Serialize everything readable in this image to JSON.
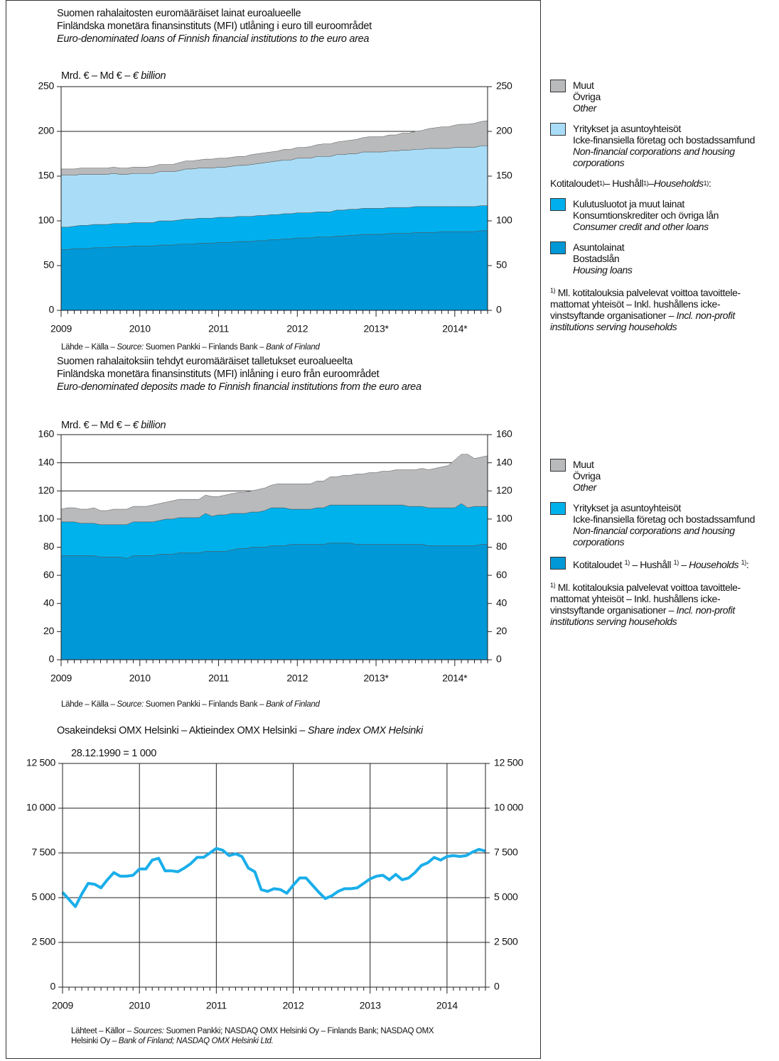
{
  "chart_data": [
    {
      "type": "area",
      "stacked": true,
      "title": [
        "Suomen rahalaitosten euromääräiset lainat euroalueelle",
        "Finländska monetära finansinstituts (MFI) utlåning i euro till euroområdet",
        {
          "italic": "Euro-denominated loans of Finnish financial institutions to the euro area"
        }
      ],
      "unit_label": [
        "Mrd. € – Md € – ",
        {
          "italic": "€ billion"
        }
      ],
      "source": [
        "Lähde – Källa – ",
        {
          "italic": "Source:"
        },
        " Suomen Pankki – Finlands Bank – ",
        {
          "italic": "Bank of Finland"
        }
      ],
      "categories": [
        "2009",
        null,
        null,
        null,
        null,
        null,
        null,
        null,
        null,
        null,
        null,
        null,
        "2010",
        null,
        null,
        null,
        null,
        null,
        null,
        null,
        null,
        null,
        null,
        null,
        "2011",
        null,
        null,
        null,
        null,
        null,
        null,
        null,
        null,
        null,
        null,
        null,
        "2012",
        null,
        null,
        null,
        null,
        null,
        null,
        null,
        null,
        null,
        null,
        null,
        "2013*",
        null,
        null,
        null,
        null,
        null,
        null,
        null,
        null,
        null,
        null,
        null,
        "2014*",
        null,
        null,
        null,
        null,
        null
      ],
      "ylim": [
        0,
        250
      ],
      "yticks": [
        0,
        50,
        100,
        150,
        200,
        250
      ],
      "grid": true,
      "legend_heading": [
        "Kotitaloudet ",
        {
          "sup": "1)"
        },
        " – Hushåll ",
        {
          "sup": "1)"
        },
        " – ",
        {
          "italic": "Households "
        },
        {
          "sup": "1)"
        },
        ":"
      ],
      "footnote": [
        [
          {
            "sup": "1)"
          },
          " Ml. kotitalouksia palvelevat voittoa tavoittele-"
        ],
        "mattomat yhteisöt – Inkl. hushållens icke-",
        [
          "vinstsyftande organisationer – ",
          {
            "italic": "Incl. non-profit"
          }
        ],
        {
          "italic": "institutions serving households"
        }
      ],
      "series": [
        {
          "name": [
            "Muut",
            "Övriga",
            {
              "italic": "Other"
            }
          ],
          "color": "#b9babc",
          "values": [
            7,
            7,
            7,
            7,
            7,
            7,
            7,
            7,
            7,
            7,
            7,
            7,
            7,
            7,
            8,
            8,
            8,
            8,
            9,
            9,
            9,
            9,
            10,
            10,
            10,
            10,
            10,
            10,
            10,
            11,
            11,
            11,
            11,
            11,
            12,
            12,
            12,
            12,
            13,
            13,
            14,
            14,
            14,
            15,
            15,
            16,
            16,
            17,
            17,
            17,
            18,
            18,
            19,
            19,
            20,
            21,
            22,
            23,
            24,
            24,
            25,
            26,
            26,
            27,
            27,
            28
          ]
        },
        {
          "name": [
            "Yritykset ja asuntoyhteisöt",
            "Icke-finansiella företag och bostadssamfund",
            {
              "italic": "Non-financial corporations and housing"
            },
            {
              "italic": "corporations"
            }
          ],
          "color": "#a9ddf7",
          "values": [
            58,
            58,
            57,
            57,
            57,
            56,
            56,
            56,
            56,
            55,
            55,
            55,
            55,
            55,
            55,
            55,
            55,
            55,
            55,
            56,
            56,
            56,
            56,
            56,
            56,
            56,
            57,
            57,
            57,
            58,
            58,
            59,
            59,
            60,
            60,
            60,
            61,
            61,
            61,
            62,
            62,
            62,
            62,
            62,
            62,
            62,
            63,
            63,
            63,
            63,
            63,
            63,
            64,
            64,
            64,
            64,
            65,
            65,
            65,
            65,
            66,
            66,
            66,
            66,
            67,
            67
          ]
        },
        {
          "name": [
            "Kulutusluotot ja muut lainat",
            "Konsumtionskrediter och övriga lån",
            {
              "italic": "Consumer credit and other loans"
            }
          ],
          "color": "#00b0ee",
          "values": [
            25,
            25,
            25,
            26,
            26,
            26,
            26,
            26,
            26,
            26,
            26,
            26,
            26,
            26,
            26,
            27,
            27,
            27,
            27,
            28,
            28,
            28,
            28,
            28,
            28,
            28,
            28,
            28,
            28,
            28,
            28,
            28,
            28,
            28,
            28,
            28,
            28,
            28,
            28,
            28,
            28,
            28,
            29,
            29,
            29,
            29,
            29,
            29,
            29,
            29,
            29,
            29,
            29,
            29,
            29,
            29,
            29,
            29,
            28,
            28,
            28,
            28,
            28,
            28,
            28,
            28
          ]
        },
        {
          "name": [
            "Asuntolainat",
            "Bostadslån",
            {
              "italic": "Housing loans"
            }
          ],
          "color": "#0098d6",
          "values": [
            68,
            68,
            69,
            69,
            69,
            70,
            70,
            70,
            71,
            71,
            71,
            72,
            72,
            72,
            72,
            73,
            73,
            73,
            74,
            74,
            74,
            75,
            75,
            75,
            76,
            76,
            76,
            77,
            77,
            77,
            78,
            78,
            79,
            79,
            80,
            80,
            81,
            81,
            81,
            82,
            82,
            82,
            83,
            83,
            84,
            84,
            85,
            85,
            85,
            85,
            86,
            86,
            86,
            86,
            87,
            87,
            87,
            87,
            88,
            88,
            88,
            88,
            88,
            88,
            89,
            89
          ]
        }
      ]
    },
    {
      "type": "area",
      "stacked": true,
      "title": [
        "Suomen rahalaitoksiin tehdyt euromääräiset talletukset euroalueelta",
        "Finländska monetära finansinstituts (MFI) inlåning i euro från euroområdet",
        {
          "italic": "Euro-denominated deposits made to Finnish financial institutions from the euro area"
        }
      ],
      "unit_label": [
        "Mrd. € – Md € – ",
        {
          "italic": "€ billion"
        }
      ],
      "source": [
        "Lähde – Källa – ",
        {
          "italic": "Source:"
        },
        " Suomen Pankki – Finlands Bank – ",
        {
          "italic": "Bank of Finland"
        }
      ],
      "categories": [
        "2009",
        null,
        null,
        null,
        null,
        null,
        null,
        null,
        null,
        null,
        null,
        null,
        "2010",
        null,
        null,
        null,
        null,
        null,
        null,
        null,
        null,
        null,
        null,
        null,
        "2011",
        null,
        null,
        null,
        null,
        null,
        null,
        null,
        null,
        null,
        null,
        null,
        "2012",
        null,
        null,
        null,
        null,
        null,
        null,
        null,
        null,
        null,
        null,
        null,
        "2013*",
        null,
        null,
        null,
        null,
        null,
        null,
        null,
        null,
        null,
        null,
        null,
        "2014*",
        null,
        null,
        null,
        null,
        null
      ],
      "ylim": [
        0,
        160
      ],
      "yticks": [
        0,
        20,
        40,
        60,
        80,
        100,
        120,
        140,
        160
      ],
      "grid": true,
      "footnote": [
        [
          {
            "sup": "1)"
          },
          " Ml. kotitalouksia palvelevat voittoa tavoittele-"
        ],
        "mattomat yhteisöt – Inkl. hushållens icke-",
        [
          "vinstsyftande organisationer – ",
          {
            "italic": "Incl. non-profit"
          }
        ],
        {
          "italic": "institutions serving households"
        }
      ],
      "series": [
        {
          "name": [
            "Muut",
            "Övriga",
            {
              "italic": "Other"
            }
          ],
          "color": "#b9babc",
          "values": [
            9,
            10,
            10,
            10,
            10,
            11,
            10,
            10,
            11,
            11,
            11,
            11,
            11,
            11,
            12,
            12,
            12,
            13,
            13,
            13,
            13,
            13,
            13,
            14,
            13,
            14,
            14,
            15,
            15,
            15,
            16,
            16,
            16,
            17,
            17,
            18,
            18,
            18,
            18,
            19,
            19,
            20,
            20,
            21,
            21,
            22,
            22,
            23,
            23,
            24,
            24,
            25,
            25,
            26,
            26,
            27,
            27,
            28,
            29,
            30,
            34,
            35,
            38,
            34,
            35,
            36
          ]
        },
        {
          "name": [
            "Yritykset ja asuntoyhteisöt",
            "Icke-finansiella företag och bostadssamfund",
            {
              "italic": "Non-financial corporations and housing"
            },
            {
              "italic": "corporations"
            }
          ],
          "color": "#00b2ec",
          "values": [
            24,
            24,
            24,
            23,
            23,
            23,
            23,
            23,
            23,
            23,
            24,
            24,
            24,
            24,
            24,
            24,
            25,
            25,
            25,
            25,
            25,
            25,
            27,
            25,
            26,
            26,
            26,
            25,
            25,
            25,
            25,
            26,
            27,
            27,
            27,
            25,
            25,
            25,
            25,
            26,
            26,
            27,
            27,
            27,
            27,
            28,
            28,
            28,
            28,
            28,
            28,
            28,
            28,
            27,
            27,
            27,
            27,
            27,
            27,
            27,
            27,
            30,
            27,
            28,
            27,
            27
          ]
        },
        {
          "name": [
            [
              "Kotitaloudet ",
              {
                "sup": "1)"
              },
              " – Hushåll ",
              {
                "sup": "1)"
              },
              " – ",
              {
                "italic": "Households "
              },
              {
                "sup": "1)"
              },
              ":"
            ]
          ],
          "color": "#0098d6",
          "values": [
            74,
            74,
            74,
            74,
            74,
            74,
            73,
            73,
            73,
            73,
            72,
            74,
            74,
            74,
            74,
            75,
            75,
            75,
            76,
            76,
            76,
            76,
            77,
            77,
            77,
            77,
            78,
            79,
            79,
            80,
            80,
            80,
            81,
            81,
            81,
            82,
            82,
            82,
            82,
            82,
            82,
            83,
            83,
            83,
            83,
            82,
            82,
            82,
            82,
            82,
            82,
            82,
            82,
            82,
            82,
            82,
            81,
            81,
            81,
            81,
            81,
            81,
            81,
            81,
            82,
            82
          ]
        }
      ]
    },
    {
      "type": "line",
      "title": [
        [
          "Osakeindeksi OMX Helsinki – Aktieindex OMX Helsinki – ",
          {
            "italic": "Share index OMX Helsinki"
          }
        ]
      ],
      "unit_label": "28.12.1990 = 1 000",
      "source": [
        [
          "Lähteet – Källor – ",
          {
            "italic": "Sources:"
          },
          " Suomen Pankki; NASDAQ OMX Helsinki Oy – Finlands Bank; NASDAQ OMX"
        ],
        [
          "Helsinki Oy – ",
          {
            "italic": "Bank of Finland; NASDAQ OMX Helsinki Ltd."
          }
        ]
      ],
      "categories": [
        "2009",
        null,
        null,
        null,
        null,
        null,
        null,
        null,
        null,
        null,
        null,
        null,
        "2010",
        null,
        null,
        null,
        null,
        null,
        null,
        null,
        null,
        null,
        null,
        null,
        "2011",
        null,
        null,
        null,
        null,
        null,
        null,
        null,
        null,
        null,
        null,
        null,
        "2012",
        null,
        null,
        null,
        null,
        null,
        null,
        null,
        null,
        null,
        null,
        null,
        "2013",
        null,
        null,
        null,
        null,
        null,
        null,
        null,
        null,
        null,
        null,
        null,
        "2014",
        null,
        null,
        null,
        null,
        null,
        null
      ],
      "ylim": [
        0,
        12500
      ],
      "yticks": [
        0,
        {
          "value": 2500,
          "label": "2 500"
        },
        {
          "value": 5000,
          "label": "5 000"
        },
        {
          "value": 7500,
          "label": "7 500"
        },
        {
          "value": 10000,
          "label": "10 000"
        },
        {
          "value": 12500,
          "label": "12 500"
        }
      ],
      "grid": true,
      "xgrid": true,
      "color": "#1aaeea",
      "values": [
        5300,
        4900,
        4500,
        5200,
        5800,
        5750,
        5550,
        6000,
        6400,
        6200,
        6200,
        6250,
        6600,
        6600,
        7100,
        7200,
        6500,
        6500,
        6450,
        6650,
        6900,
        7250,
        7250,
        7500,
        7750,
        7650,
        7350,
        7450,
        7300,
        6650,
        6450,
        5450,
        5350,
        5500,
        5450,
        5250,
        5700,
        6100,
        6100,
        5700,
        5300,
        4950,
        5100,
        5350,
        5500,
        5500,
        5550,
        5800,
        6050,
        6200,
        6250,
        6000,
        6300,
        6000,
        6100,
        6400,
        6800,
        6950,
        7250,
        7100,
        7300,
        7350,
        7300,
        7350,
        7550,
        7700,
        7600
      ]
    }
  ]
}
